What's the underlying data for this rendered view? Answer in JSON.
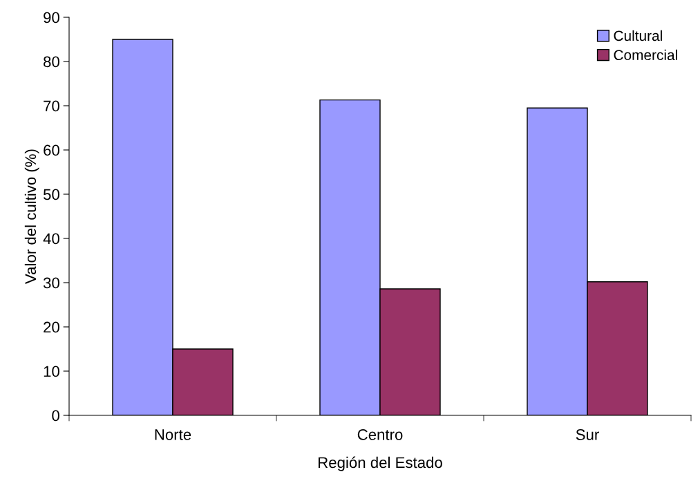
{
  "chart_data": {
    "type": "bar",
    "xlabel": "Región del Estado",
    "ylabel": "Valor del cultivo (%)",
    "categories": [
      "Norte",
      "Centro",
      "Sur"
    ],
    "series": [
      {
        "name": "Cultural",
        "color": "#9999ff",
        "values": [
          85,
          71.3,
          69.5
        ]
      },
      {
        "name": "Comercial",
        "color": "#993366",
        "values": [
          15,
          28.6,
          30.2
        ]
      }
    ],
    "ylim": [
      0,
      90
    ],
    "yticks": [
      0,
      10,
      20,
      30,
      40,
      50,
      60,
      70,
      80,
      90
    ],
    "grid": false,
    "legend": "top right"
  }
}
